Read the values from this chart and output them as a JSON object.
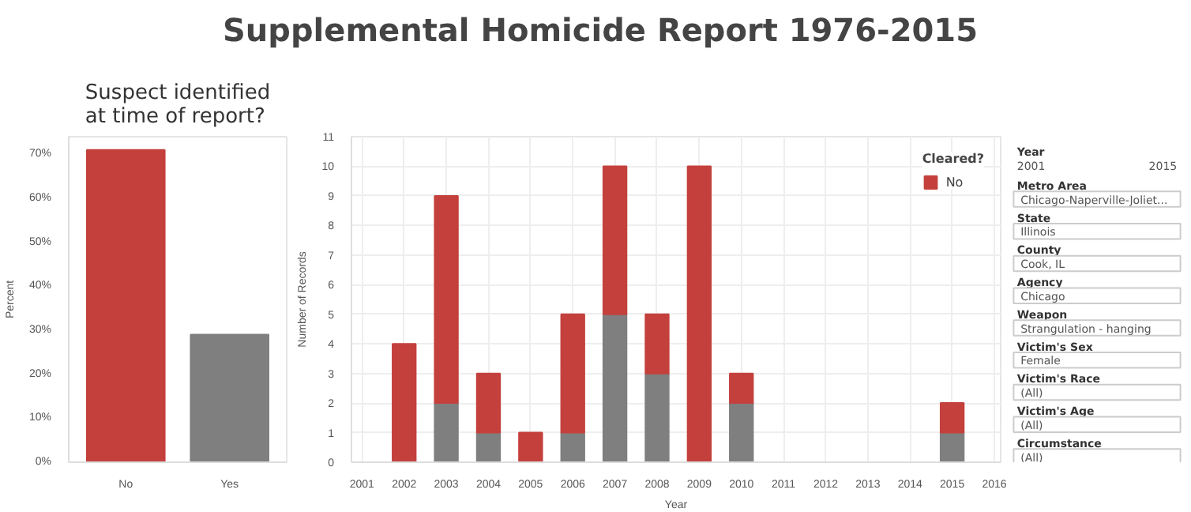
{
  "chart_data": [
    {
      "type": "bar",
      "title": "Suspect identified\nat time of report?",
      "ylabel": "Percent",
      "categories": [
        "No",
        "Yes"
      ],
      "values": [
        71,
        29
      ],
      "colors": [
        "#c4403c",
        "#7f7f7f"
      ],
      "ylim": [
        0,
        74
      ],
      "yticks": [
        {
          "value": 0,
          "label": "0%"
        },
        {
          "value": 10,
          "label": "10%"
        },
        {
          "value": 20,
          "label": "20%"
        },
        {
          "value": 30,
          "label": "30%"
        },
        {
          "value": 40,
          "label": "40%"
        },
        {
          "value": 50,
          "label": "50%"
        },
        {
          "value": 60,
          "label": "60%"
        },
        {
          "value": 70,
          "label": "70%"
        }
      ],
      "grid": false,
      "legend": false
    },
    {
      "type": "bar",
      "title": "Supplemental Homicide Report 1976-2015",
      "xlabel": "Year",
      "ylabel": "Number of Records",
      "stacked": true,
      "x": [
        2002,
        2003,
        2004,
        2005,
        2006,
        2007,
        2008,
        2009,
        2010,
        2015
      ],
      "series": [
        {
          "color": "#7f7f7f",
          "values": [
            0,
            2,
            1,
            0,
            1,
            5,
            3,
            0,
            2,
            1
          ]
        },
        {
          "name": "No",
          "color": "#c4403c",
          "values": [
            4,
            7,
            2,
            1,
            4,
            5,
            2,
            10,
            1,
            1
          ]
        }
      ],
      "xlim": [
        2000.75,
        2016.15
      ],
      "xticks": [
        2001,
        2002,
        2003,
        2004,
        2005,
        2006,
        2007,
        2008,
        2009,
        2010,
        2011,
        2012,
        2013,
        2014,
        2015,
        2016
      ],
      "ylim": [
        0,
        11
      ],
      "yticks": [
        0,
        1,
        2,
        3,
        4,
        5,
        6,
        7,
        8,
        9,
        10,
        11
      ],
      "grid": true,
      "legend": "top right",
      "legend_title": "Cleared?"
    },
    {
      "type": "other",
      "annotations": [
        "Year",
        "2001",
        "2015",
        "Metro Area",
        "Chicago-Naperville-Joliet...",
        "State",
        "Illinois",
        "County",
        "Cook, IL",
        "Agency",
        "Chicago",
        "Weapon",
        "Strangulation - hanging",
        "Victim's Sex",
        "Female",
        "Victim's Race",
        "(All)",
        "Victim's Age",
        "(All)",
        "Circumstance",
        "(All)"
      ]
    }
  ]
}
